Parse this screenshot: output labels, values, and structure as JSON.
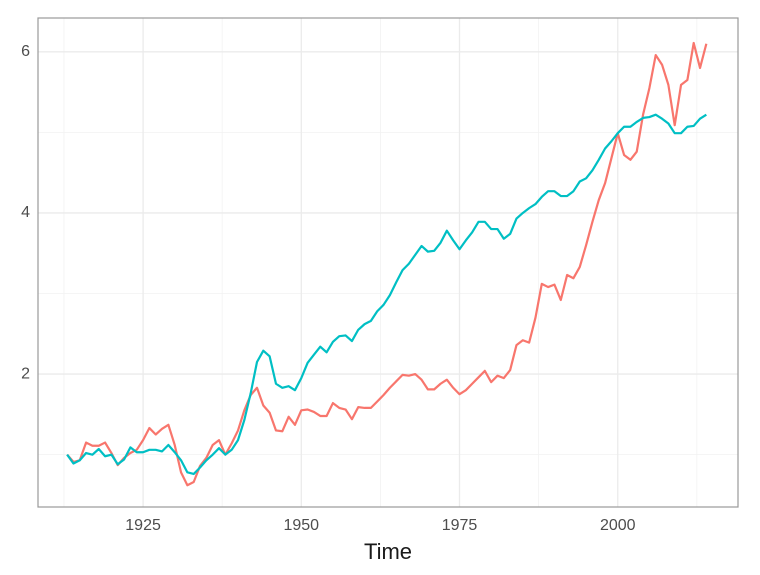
{
  "chart_data": {
    "type": "line",
    "xlabel": "Time",
    "x": [
      1913,
      1914,
      1915,
      1916,
      1917,
      1918,
      1919,
      1920,
      1921,
      1922,
      1923,
      1924,
      1925,
      1926,
      1927,
      1928,
      1929,
      1930,
      1931,
      1932,
      1933,
      1934,
      1935,
      1936,
      1937,
      1938,
      1939,
      1940,
      1941,
      1942,
      1943,
      1944,
      1945,
      1946,
      1947,
      1948,
      1949,
      1950,
      1951,
      1952,
      1953,
      1954,
      1955,
      1956,
      1957,
      1958,
      1959,
      1960,
      1961,
      1962,
      1963,
      1964,
      1965,
      1966,
      1967,
      1968,
      1969,
      1970,
      1971,
      1972,
      1973,
      1974,
      1975,
      1976,
      1977,
      1978,
      1979,
      1980,
      1981,
      1982,
      1983,
      1984,
      1985,
      1986,
      1987,
      1988,
      1989,
      1990,
      1991,
      1992,
      1993,
      1994,
      1995,
      1996,
      1997,
      1998,
      1999,
      2000,
      2001,
      2002,
      2003,
      2004,
      2005,
      2006,
      2007,
      2008,
      2009,
      2010,
      2011,
      2012,
      2013,
      2014
    ],
    "series": [
      {
        "color": "#F8766D",
        "values": [
          1.0,
          0.91,
          0.93,
          1.15,
          1.11,
          1.11,
          1.15,
          1.02,
          0.87,
          0.96,
          1.02,
          1.06,
          1.18,
          1.33,
          1.25,
          1.32,
          1.37,
          1.12,
          0.78,
          0.62,
          0.66,
          0.86,
          0.96,
          1.12,
          1.18,
          1.0,
          1.14,
          1.3,
          1.55,
          1.74,
          1.83,
          1.61,
          1.52,
          1.3,
          1.29,
          1.47,
          1.37,
          1.55,
          1.56,
          1.53,
          1.48,
          1.48,
          1.64,
          1.58,
          1.56,
          1.44,
          1.59,
          1.58,
          1.58,
          1.66,
          1.74,
          1.83,
          1.91,
          1.99,
          1.98,
          2.0,
          1.93,
          1.81,
          1.81,
          1.88,
          1.93,
          1.83,
          1.75,
          1.8,
          1.88,
          1.96,
          2.04,
          1.9,
          1.98,
          1.95,
          2.05,
          2.36,
          2.42,
          2.39,
          2.7,
          3.12,
          3.08,
          3.11,
          2.92,
          3.23,
          3.19,
          3.33,
          3.6,
          3.89,
          4.16,
          4.37,
          4.68,
          4.99,
          4.72,
          4.66,
          4.76,
          5.22,
          5.55,
          5.96,
          5.84,
          5.59,
          5.09,
          5.59,
          5.65,
          6.11,
          5.8,
          6.1
        ]
      },
      {
        "color": "#00BFC4",
        "values": [
          1.0,
          0.89,
          0.93,
          1.02,
          1.0,
          1.07,
          0.98,
          1.0,
          0.88,
          0.94,
          1.09,
          1.03,
          1.03,
          1.06,
          1.06,
          1.04,
          1.12,
          1.03,
          0.93,
          0.78,
          0.76,
          0.84,
          0.93,
          1.0,
          1.08,
          1.0,
          1.06,
          1.18,
          1.43,
          1.76,
          2.15,
          2.29,
          2.22,
          1.88,
          1.83,
          1.85,
          1.8,
          1.95,
          2.14,
          2.24,
          2.34,
          2.27,
          2.4,
          2.47,
          2.48,
          2.41,
          2.55,
          2.62,
          2.66,
          2.78,
          2.86,
          2.98,
          3.14,
          3.29,
          3.37,
          3.48,
          3.59,
          3.52,
          3.53,
          3.63,
          3.78,
          3.66,
          3.55,
          3.66,
          3.76,
          3.89,
          3.89,
          3.8,
          3.8,
          3.68,
          3.74,
          3.93,
          4.0,
          4.06,
          4.11,
          4.2,
          4.27,
          4.27,
          4.21,
          4.21,
          4.27,
          4.39,
          4.43,
          4.53,
          4.66,
          4.8,
          4.89,
          4.99,
          5.07,
          5.07,
          5.13,
          5.18,
          5.19,
          5.22,
          5.17,
          5.11,
          4.99,
          4.99,
          5.07,
          5.08,
          5.17,
          5.22
        ]
      }
    ],
    "xlim": [
      1908.4,
      2019
    ],
    "xticks": [
      1925,
      1950,
      1975,
      2000
    ],
    "xticks_minor": [
      1912.5,
      1937.5,
      1962.5,
      1987.5,
      2012.5
    ],
    "ylim": [
      0.35,
      6.42
    ],
    "yticks": [
      2,
      4,
      6
    ],
    "yticks_minor": [
      1,
      3,
      5
    ],
    "grid": true
  }
}
